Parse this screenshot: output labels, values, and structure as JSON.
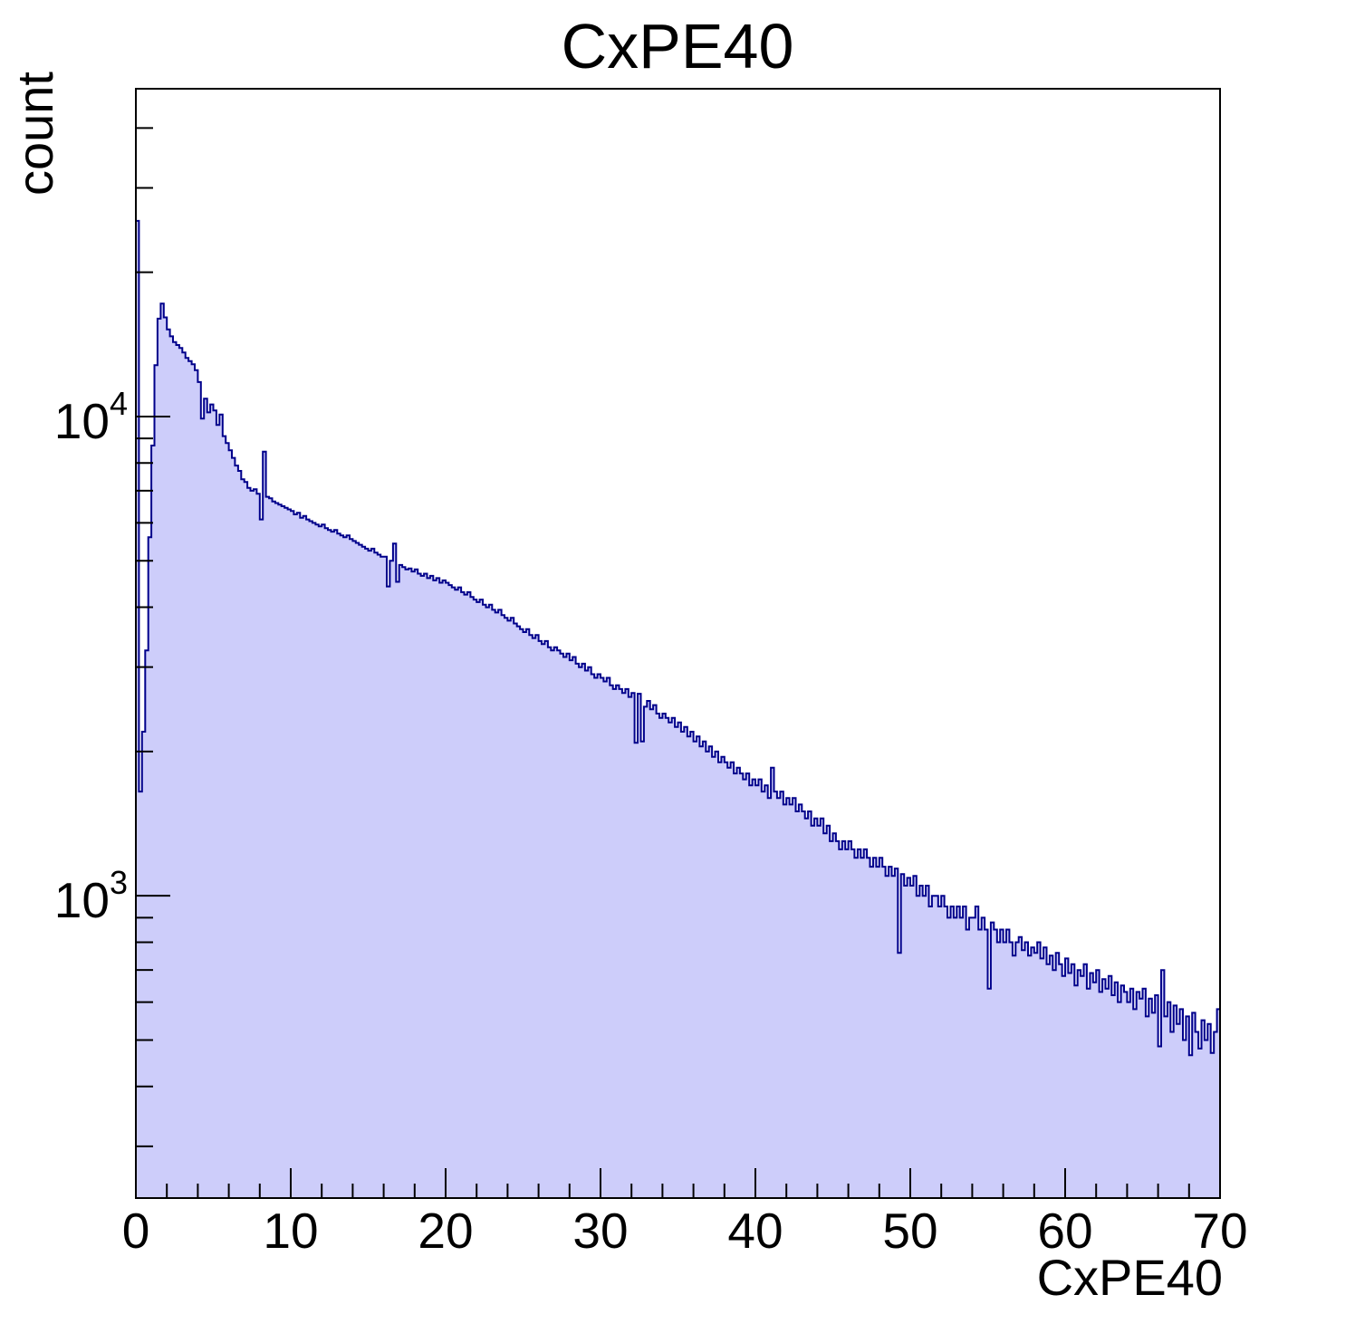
{
  "chart_data": {
    "type": "bar",
    "subtype": "histogram-filled-steps",
    "title": "CxPE40",
    "xlabel": "CxPE40",
    "ylabel": "count",
    "yscale": "log",
    "xlim": [
      0,
      70
    ],
    "ylim": [
      234,
      48300
    ],
    "grid": false,
    "legend": "none",
    "fill_color": "#cdcdfa",
    "line_color": "#00008b",
    "frame_color": "#000000",
    "bin_width": 0.2,
    "x_start": 0,
    "x_axis": {
      "major_ticks": [
        0,
        10,
        20,
        30,
        40,
        50,
        60,
        70
      ],
      "major_labels": [
        "0",
        "10",
        "20",
        "30",
        "40",
        "50",
        "60",
        "70"
      ],
      "minor_ticks": [
        2,
        4,
        6,
        8,
        12,
        14,
        16,
        18,
        22,
        24,
        26,
        28,
        32,
        34,
        36,
        38,
        42,
        44,
        46,
        48,
        52,
        54,
        56,
        58,
        62,
        64,
        66,
        68
      ]
    },
    "y_axis": {
      "major_ticks": [
        {
          "value": 1000,
          "base": "10",
          "exp": "3"
        },
        {
          "value": 10000,
          "base": "10",
          "exp": "4"
        }
      ],
      "minor_ticks": [
        300,
        400,
        500,
        600,
        700,
        800,
        900,
        2000,
        3000,
        4000,
        5000,
        6000,
        7000,
        8000,
        9000,
        20000,
        30000,
        40000
      ]
    },
    "counts": [
      25600,
      1650,
      2200,
      3250,
      5600,
      8700,
      12800,
      16000,
      17200,
      16100,
      15200,
      14700,
      14300,
      14100,
      13900,
      13600,
      13250,
      13050,
      12850,
      12500,
      11800,
      9900,
      10900,
      10200,
      10600,
      10300,
      9600,
      10100,
      9100,
      8800,
      8500,
      8200,
      7900,
      7700,
      7400,
      7300,
      7100,
      7000,
      7050,
      6900,
      6100,
      8450,
      6800,
      6750,
      6650,
      6600,
      6550,
      6500,
      6450,
      6400,
      6350,
      6250,
      6300,
      6150,
      6200,
      6100,
      6050,
      6000,
      5950,
      5900,
      5950,
      5850,
      5800,
      5750,
      5800,
      5700,
      5650,
      5600,
      5650,
      5550,
      5500,
      5450,
      5400,
      5350,
      5300,
      5250,
      5300,
      5200,
      5150,
      5100,
      5100,
      4420,
      5000,
      5430,
      4520,
      4900,
      4850,
      4800,
      4820,
      4750,
      4800,
      4700,
      4650,
      4700,
      4600,
      4650,
      4550,
      4600,
      4500,
      4550,
      4500,
      4450,
      4400,
      4350,
      4400,
      4300,
      4250,
      4300,
      4200,
      4150,
      4100,
      4150,
      4050,
      4000,
      4050,
      3950,
      3900,
      3950,
      3850,
      3800,
      3750,
      3800,
      3700,
      3650,
      3600,
      3550,
      3600,
      3500,
      3450,
      3500,
      3400,
      3350,
      3400,
      3300,
      3250,
      3300,
      3250,
      3200,
      3150,
      3200,
      3100,
      3150,
      3050,
      3000,
      3050,
      2950,
      3000,
      2900,
      2850,
      2900,
      2850,
      2800,
      2850,
      2750,
      2700,
      2750,
      2700,
      2650,
      2700,
      2600,
      2650,
      2085,
      2640,
      2100,
      2480,
      2550,
      2450,
      2500,
      2400,
      2350,
      2400,
      2350,
      2300,
      2350,
      2250,
      2300,
      2200,
      2250,
      2150,
      2200,
      2100,
      2150,
      2050,
      2100,
      2000,
      2050,
      1950,
      2000,
      1900,
      1950,
      1900,
      1850,
      1900,
      1800,
      1850,
      1800,
      1750,
      1800,
      1700,
      1750,
      1700,
      1750,
      1650,
      1700,
      1600,
      1850,
      1650,
      1600,
      1650,
      1550,
      1600,
      1550,
      1600,
      1500,
      1550,
      1500,
      1450,
      1500,
      1400,
      1450,
      1400,
      1450,
      1350,
      1400,
      1300,
      1350,
      1300,
      1250,
      1300,
      1250,
      1300,
      1250,
      1200,
      1250,
      1200,
      1250,
      1200,
      1150,
      1200,
      1150,
      1200,
      1150,
      1100,
      1150,
      1100,
      1140,
      760,
      1110,
      1050,
      1090,
      1050,
      1100,
      1000,
      1050,
      1000,
      1050,
      950,
      1000,
      1000,
      950,
      1000,
      950,
      900,
      950,
      900,
      950,
      900,
      950,
      850,
      900,
      900,
      950,
      850,
      900,
      850,
      640,
      880,
      850,
      800,
      850,
      800,
      850,
      800,
      750,
      800,
      820,
      770,
      800,
      750,
      780,
      760,
      800,
      740,
      780,
      720,
      750,
      700,
      760,
      720,
      680,
      740,
      690,
      720,
      650,
      700,
      680,
      720,
      640,
      690,
      660,
      700,
      630,
      670,
      640,
      680,
      620,
      660,
      600,
      650,
      630,
      600,
      640,
      580,
      630,
      610,
      640,
      560,
      610,
      570,
      620,
      485,
      700,
      560,
      600,
      520,
      590,
      540,
      580,
      500,
      560,
      465,
      570,
      520,
      480,
      550,
      500,
      540,
      470,
      520,
      580
    ]
  }
}
